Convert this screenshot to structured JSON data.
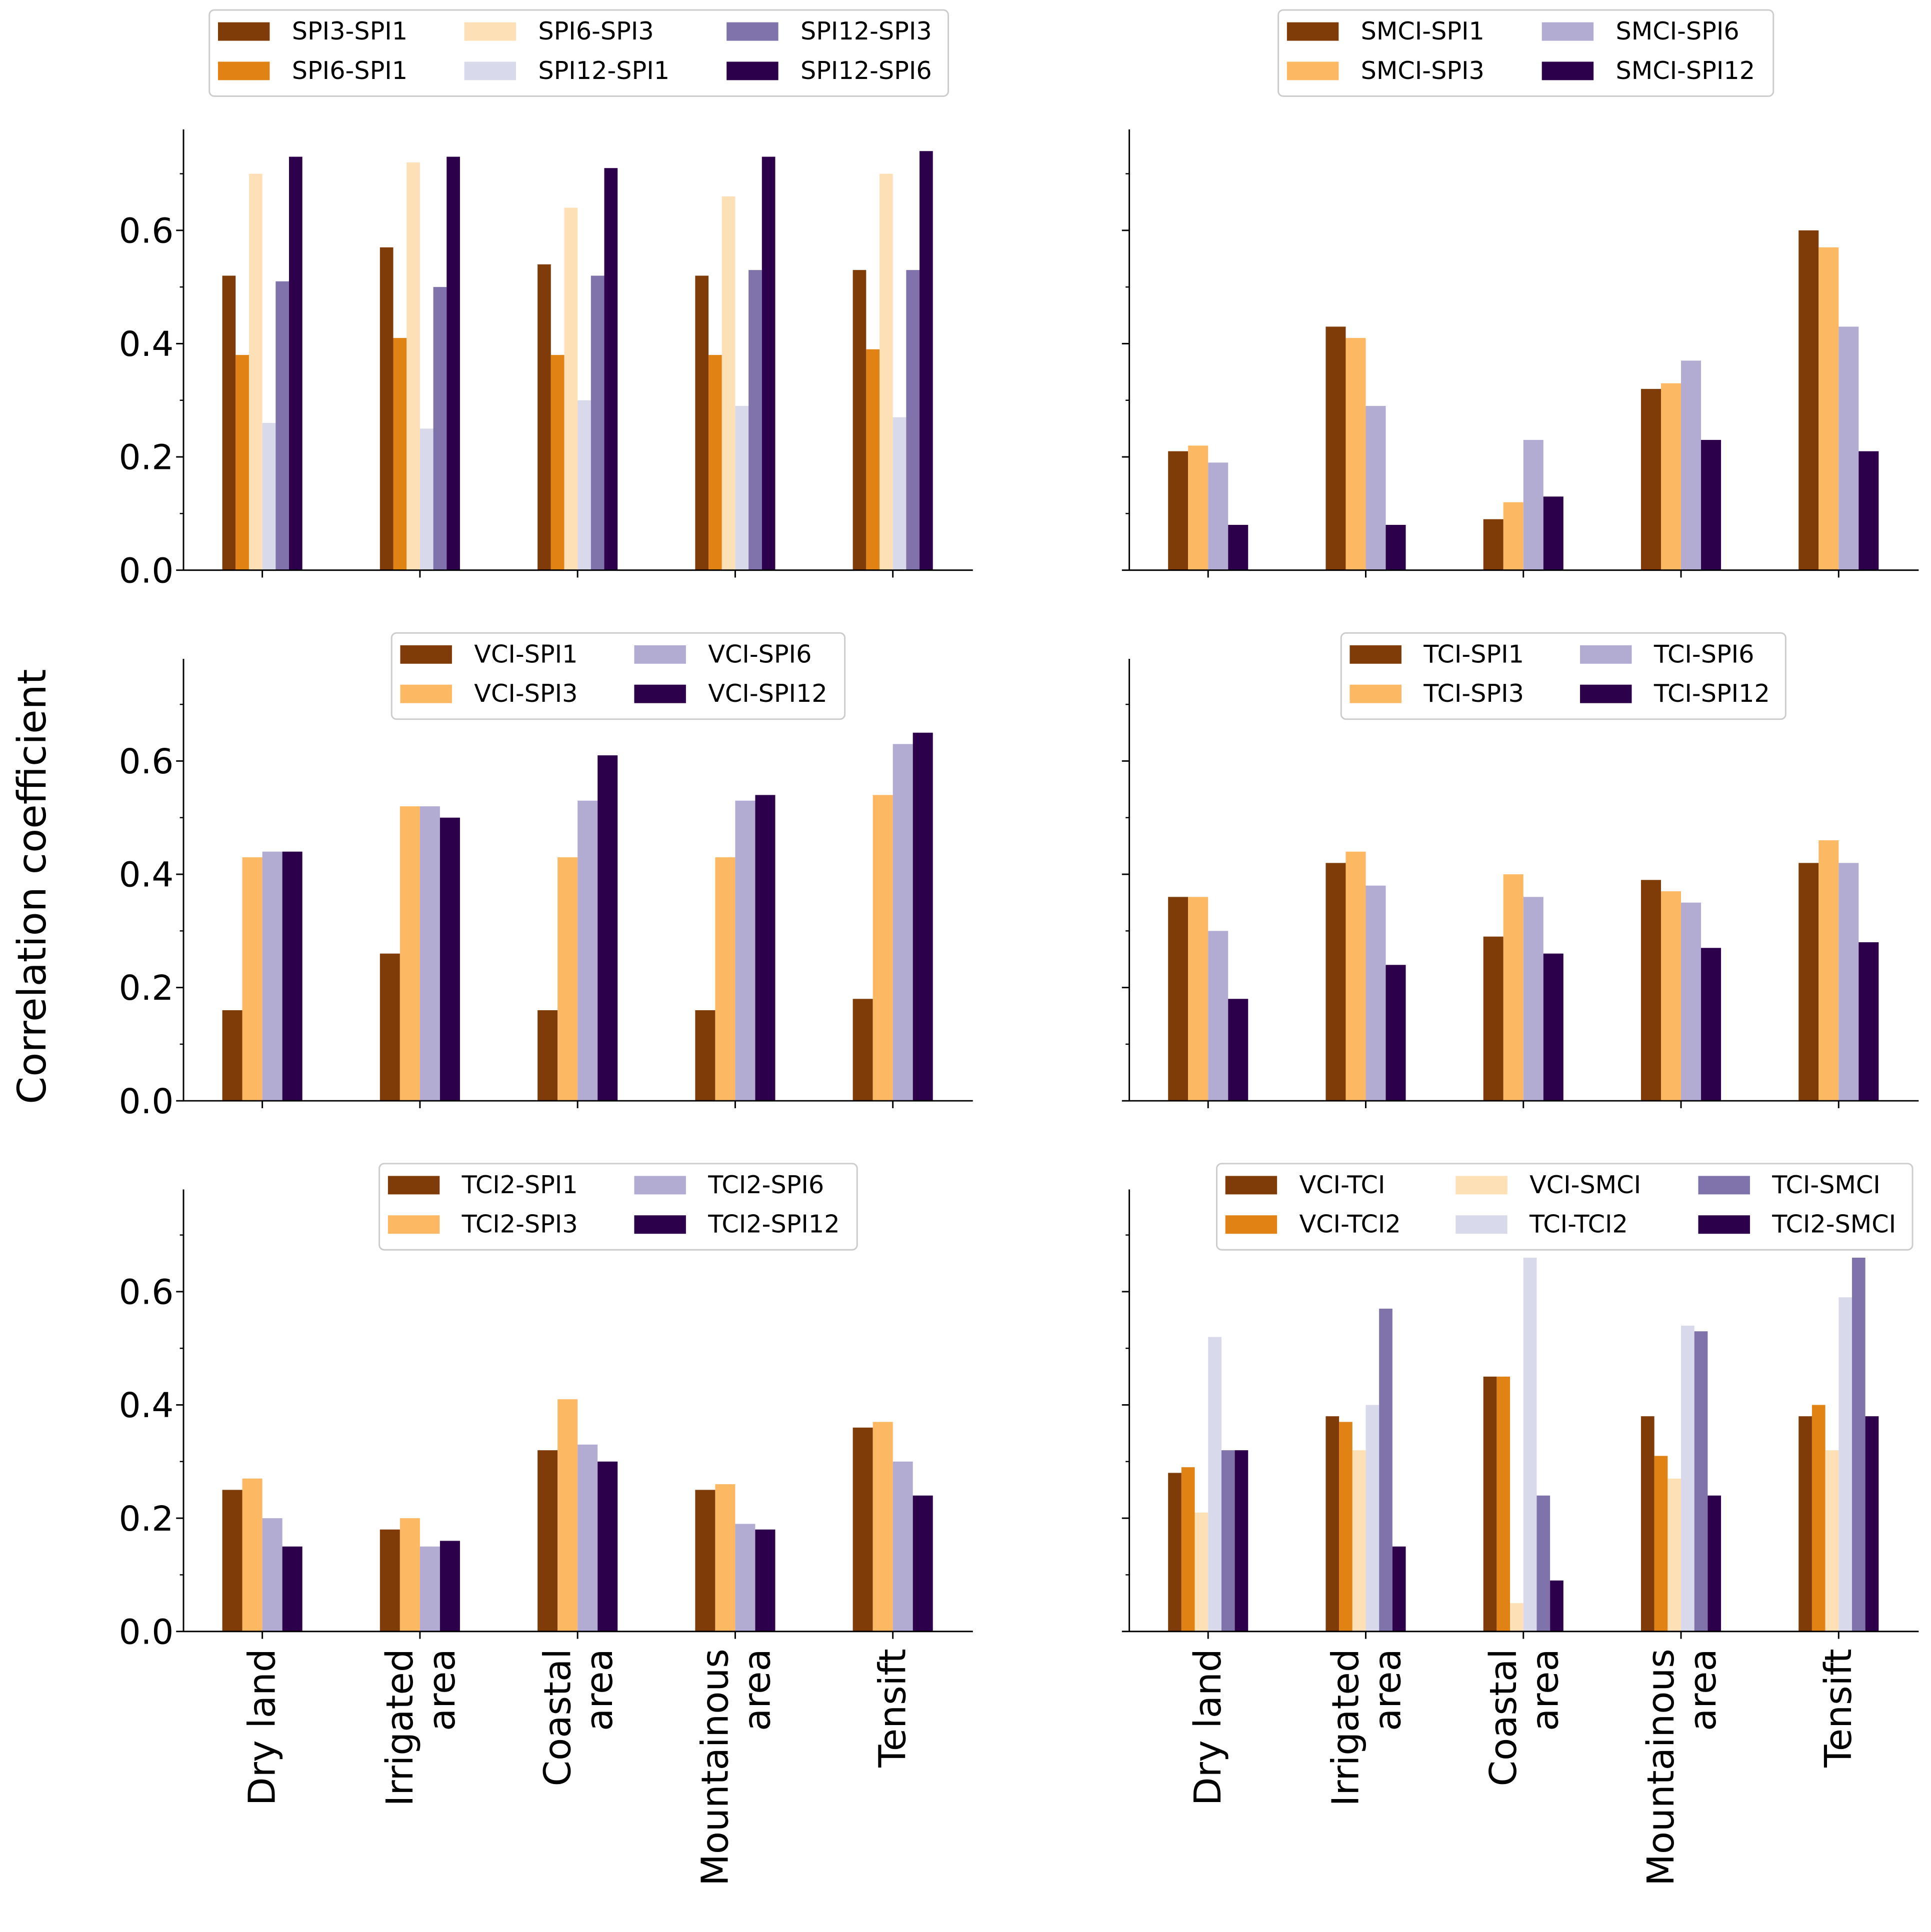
{
  "ylabel": "Correlation coefficient",
  "chart_data": [
    {
      "type": "bar",
      "title": "",
      "ylabel": "Correlation coefficient",
      "ylim": [
        0,
        0.78
      ],
      "yticks": [
        "0.0",
        "0.2",
        "0.4",
        "0.6"
      ],
      "categories": [
        "Dry land",
        "Irrigated area",
        "Coastal area",
        "Mountainous area",
        "Tensift"
      ],
      "series": [
        {
          "name": "SPI3-SPI1",
          "color": "#7f3b08",
          "values": [
            0.52,
            0.57,
            0.54,
            0.52,
            0.53
          ]
        },
        {
          "name": "SPI6-SPI1",
          "color": "#e08214",
          "values": [
            0.38,
            0.41,
            0.38,
            0.38,
            0.39
          ]
        },
        {
          "name": "SPI6-SPI3",
          "color": "#fee0b6",
          "values": [
            0.7,
            0.72,
            0.64,
            0.66,
            0.7
          ]
        },
        {
          "name": "SPI12-SPI1",
          "color": "#d8daeb",
          "values": [
            0.26,
            0.25,
            0.3,
            0.29,
            0.27
          ]
        },
        {
          "name": "SPI12-SPI3",
          "color": "#8073ac",
          "values": [
            0.51,
            0.5,
            0.52,
            0.53,
            0.53
          ]
        },
        {
          "name": "SPI12-SPI6",
          "color": "#2d004b",
          "values": [
            0.73,
            0.73,
            0.71,
            0.73,
            0.74
          ]
        }
      ]
    },
    {
      "type": "bar",
      "title": "",
      "ylim": [
        0,
        0.78
      ],
      "categories": [
        "Dry land",
        "Irrigated area",
        "Coastal area",
        "Mountainous area",
        "Tensift"
      ],
      "series": [
        {
          "name": "SMCI-SPI1",
          "color": "#7f3b08",
          "values": [
            0.21,
            0.43,
            0.09,
            0.32,
            0.6
          ]
        },
        {
          "name": "SMCI-SPI3",
          "color": "#fdb863",
          "values": [
            0.22,
            0.41,
            0.12,
            0.33,
            0.57
          ]
        },
        {
          "name": "SMCI-SPI6",
          "color": "#b2abd2",
          "values": [
            0.19,
            0.29,
            0.23,
            0.37,
            0.43
          ]
        },
        {
          "name": "SMCI-SPI12",
          "color": "#2d004b",
          "values": [
            0.08,
            0.08,
            0.13,
            0.23,
            0.21
          ]
        }
      ]
    },
    {
      "type": "bar",
      "title": "",
      "ylim": [
        0,
        0.78
      ],
      "yticks": [
        "0.0",
        "0.2",
        "0.4",
        "0.6"
      ],
      "categories": [
        "Dry land",
        "Irrigated area",
        "Coastal area",
        "Mountainous area",
        "Tensift"
      ],
      "series": [
        {
          "name": "VCI-SPI1",
          "color": "#7f3b08",
          "values": [
            0.16,
            0.26,
            0.16,
            0.16,
            0.18
          ]
        },
        {
          "name": "VCI-SPI3",
          "color": "#fdb863",
          "values": [
            0.43,
            0.52,
            0.43,
            0.43,
            0.54
          ]
        },
        {
          "name": "VCI-SPI6",
          "color": "#b2abd2",
          "values": [
            0.44,
            0.52,
            0.53,
            0.53,
            0.63
          ]
        },
        {
          "name": "VCI-SPI12",
          "color": "#2d004b",
          "values": [
            0.44,
            0.5,
            0.61,
            0.54,
            0.65
          ]
        }
      ]
    },
    {
      "type": "bar",
      "title": "",
      "ylim": [
        0,
        0.78
      ],
      "categories": [
        "Dry land",
        "Irrigated area",
        "Coastal area",
        "Mountainous area",
        "Tensift"
      ],
      "series": [
        {
          "name": "TCI-SPI1",
          "color": "#7f3b08",
          "values": [
            0.36,
            0.42,
            0.29,
            0.39,
            0.42
          ]
        },
        {
          "name": "TCI-SPI3",
          "color": "#fdb863",
          "values": [
            0.36,
            0.44,
            0.4,
            0.37,
            0.46
          ]
        },
        {
          "name": "TCI-SPI6",
          "color": "#b2abd2",
          "values": [
            0.3,
            0.38,
            0.36,
            0.35,
            0.42
          ]
        },
        {
          "name": "TCI-SPI12",
          "color": "#2d004b",
          "values": [
            0.18,
            0.24,
            0.26,
            0.27,
            0.28
          ]
        }
      ]
    },
    {
      "type": "bar",
      "title": "",
      "ylim": [
        0,
        0.78
      ],
      "yticks": [
        "0.0",
        "0.2",
        "0.4",
        "0.6"
      ],
      "categories": [
        "Dry land",
        "Irrigated area",
        "Coastal area",
        "Mountainous area",
        "Tensift"
      ],
      "xticklabels": [
        [
          "Dry land"
        ],
        [
          "Irrigated",
          "area"
        ],
        [
          "Coastal",
          "area"
        ],
        [
          "Mountainous",
          "area"
        ],
        [
          "Tensift"
        ]
      ],
      "series": [
        {
          "name": "TCI2-SPI1",
          "color": "#7f3b08",
          "values": [
            0.25,
            0.18,
            0.32,
            0.25,
            0.36
          ]
        },
        {
          "name": "TCI2-SPI3",
          "color": "#fdb863",
          "values": [
            0.27,
            0.2,
            0.41,
            0.26,
            0.37
          ]
        },
        {
          "name": "TCI2-SPI6",
          "color": "#b2abd2",
          "values": [
            0.2,
            0.15,
            0.33,
            0.19,
            0.3
          ]
        },
        {
          "name": "TCI2-SPI12",
          "color": "#2d004b",
          "values": [
            0.15,
            0.16,
            0.3,
            0.18,
            0.24
          ]
        }
      ]
    },
    {
      "type": "bar",
      "title": "",
      "ylim": [
        0,
        0.78
      ],
      "categories": [
        "Dry land",
        "Irrigated area",
        "Coastal area",
        "Mountainous area",
        "Tensift"
      ],
      "xticklabels": [
        [
          "Dry land"
        ],
        [
          "Irrigated",
          "area"
        ],
        [
          "Coastal",
          "area"
        ],
        [
          "Mountainous",
          "area"
        ],
        [
          "Tensift"
        ]
      ],
      "series": [
        {
          "name": "VCI-TCI",
          "color": "#7f3b08",
          "values": [
            0.28,
            0.38,
            0.45,
            0.38,
            0.38
          ]
        },
        {
          "name": "VCI-TCI2",
          "color": "#e08214",
          "values": [
            0.29,
            0.37,
            0.45,
            0.31,
            0.4
          ]
        },
        {
          "name": "VCI-SMCI",
          "color": "#fee0b6",
          "values": [
            0.21,
            0.32,
            0.05,
            0.27,
            0.32
          ]
        },
        {
          "name": "TCI-TCI2",
          "color": "#d8daeb",
          "values": [
            0.52,
            0.4,
            0.66,
            0.54,
            0.59
          ]
        },
        {
          "name": "TCI-SMCI",
          "color": "#8073ac",
          "values": [
            0.32,
            0.57,
            0.24,
            0.53,
            0.66
          ]
        },
        {
          "name": "TCI2-SMCI",
          "color": "#2d004b",
          "values": [
            0.32,
            0.15,
            0.09,
            0.24,
            0.38
          ]
        }
      ]
    }
  ]
}
